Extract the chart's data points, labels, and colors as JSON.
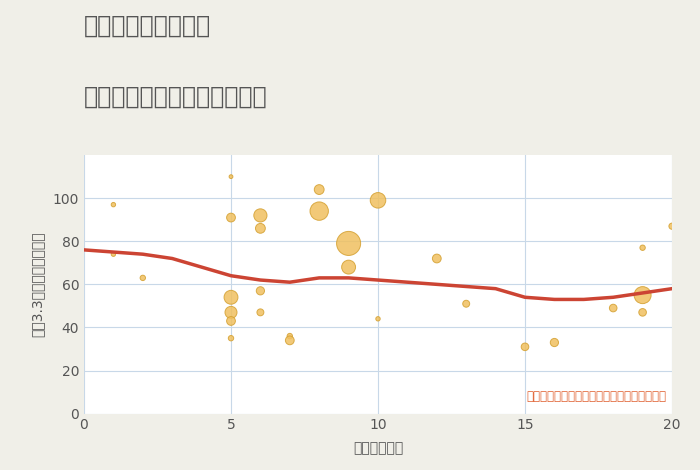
{
  "title_line1": "三重県伊賀市野間の",
  "title_line2": "駅距離別中古マンション価格",
  "xlabel": "駅距離（分）",
  "ylabel": "坪（3.3㎡）単価（万円）",
  "annotation": "円の大きさは、取引のあった物件面積を示す",
  "background_color": "#f0efe8",
  "plot_bg_color": "#ffffff",
  "xlim": [
    0,
    20
  ],
  "ylim": [
    0,
    120
  ],
  "xticks": [
    0,
    5,
    10,
    15,
    20
  ],
  "yticks": [
    0,
    20,
    40,
    60,
    80,
    100
  ],
  "scatter_x": [
    1,
    1,
    2,
    5,
    5,
    5,
    5,
    5,
    5,
    6,
    6,
    6,
    6,
    7,
    7,
    8,
    8,
    9,
    9,
    10,
    10,
    12,
    13,
    15,
    16,
    18,
    19,
    19,
    19,
    20
  ],
  "scatter_y": [
    97,
    74,
    63,
    110,
    91,
    54,
    47,
    43,
    35,
    92,
    86,
    57,
    47,
    36,
    34,
    104,
    94,
    79,
    68,
    99,
    44,
    72,
    51,
    31,
    33,
    49,
    77,
    55,
    47,
    87
  ],
  "scatter_size": [
    20,
    20,
    30,
    15,
    80,
    200,
    150,
    80,
    30,
    180,
    100,
    70,
    50,
    30,
    80,
    100,
    350,
    600,
    200,
    250,
    20,
    80,
    50,
    60,
    70,
    60,
    30,
    300,
    60,
    40
  ],
  "scatter_color": "#f0c060",
  "scatter_edge_color": "#d4a030",
  "scatter_alpha": 0.85,
  "line_x": [
    0,
    1,
    2,
    3,
    4,
    5,
    6,
    7,
    8,
    9,
    10,
    11,
    12,
    13,
    14,
    15,
    16,
    17,
    18,
    19,
    20
  ],
  "line_y": [
    76,
    75,
    74,
    72,
    68,
    64,
    62,
    61,
    63,
    63,
    62,
    61,
    60,
    59,
    58,
    54,
    53,
    53,
    54,
    56,
    58
  ],
  "line_color": "#cc4433",
  "line_width": 2.5,
  "grid_color": "#c8d8e8",
  "title_color": "#555555",
  "title_fontsize": 17,
  "axis_fontsize": 10,
  "annotation_fontsize": 8.5,
  "annotation_color": "#e06030"
}
